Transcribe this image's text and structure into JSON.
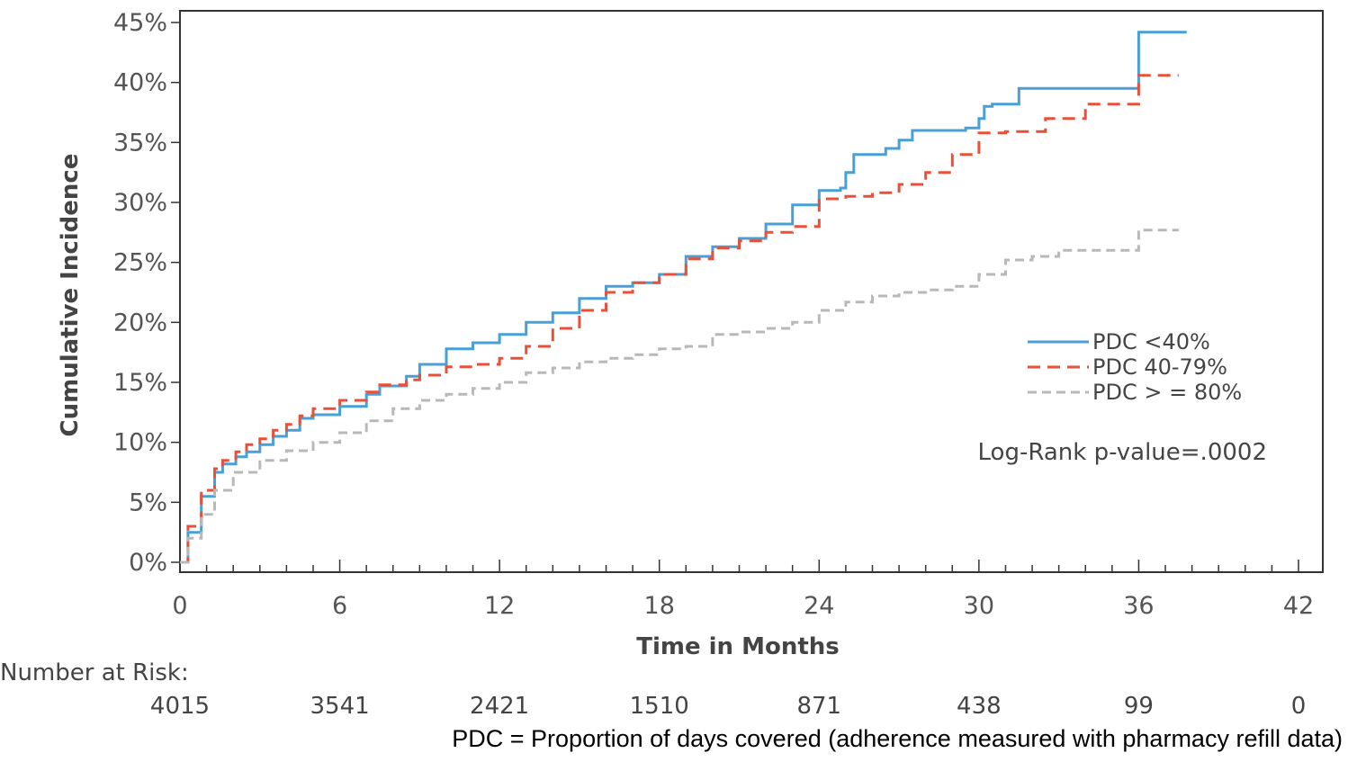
{
  "chart_data": {
    "type": "line",
    "title": "",
    "xlabel": "Time in Months",
    "ylabel": "Cumulative Incidence",
    "xlim": [
      0,
      42
    ],
    "ylim": [
      0,
      45
    ],
    "x_ticks": [
      0,
      6,
      12,
      18,
      24,
      30,
      36,
      42
    ],
    "x_tick_labels": [
      "0",
      "6",
      "12",
      "18",
      "24",
      "30",
      "36",
      "42"
    ],
    "y_ticks": [
      0,
      5,
      10,
      15,
      20,
      25,
      30,
      35,
      40,
      45
    ],
    "y_tick_labels": [
      "0%",
      "5%",
      "10%",
      "15%",
      "20%",
      "25%",
      "30%",
      "35%",
      "40%",
      "45%"
    ],
    "grid": false,
    "legend_position": "right",
    "series": [
      {
        "name": "PDC <40%",
        "color": "#4a9fd4",
        "style": "solid",
        "x": [
          0,
          0.3,
          0.8,
          1.3,
          1.6,
          2.1,
          2.5,
          3.0,
          3.5,
          4.0,
          4.5,
          5.0,
          6.0,
          7.0,
          7.5,
          8.5,
          9.0,
          10.0,
          11.0,
          12.0,
          13.0,
          14.0,
          15.0,
          16.0,
          17.0,
          18.0,
          19.0,
          20.0,
          21.0,
          22.0,
          23.0,
          24.0,
          24.8,
          25.0,
          25.3,
          26.5,
          27.0,
          27.5,
          29.5,
          30.0,
          30.2,
          30.5,
          31.5,
          35.9,
          36.0,
          37.8
        ],
        "y": [
          0,
          2.5,
          5.5,
          7.5,
          8.2,
          8.8,
          9.2,
          9.8,
          10.5,
          11.0,
          12.0,
          12.3,
          13.0,
          14.0,
          14.7,
          15.5,
          16.5,
          17.8,
          18.3,
          19.0,
          20.0,
          20.8,
          22.0,
          23.0,
          23.3,
          24.0,
          25.5,
          26.3,
          27.0,
          28.2,
          29.8,
          31.0,
          31.2,
          32.5,
          34.0,
          34.5,
          35.2,
          36.0,
          36.2,
          37.0,
          38.0,
          38.2,
          39.5,
          39.5,
          44.2,
          44.2
        ]
      },
      {
        "name": "PDC 40-79%",
        "color": "#e8503a",
        "style": "dashed",
        "x": [
          0,
          0.3,
          0.8,
          1.3,
          1.6,
          2.1,
          2.5,
          3.0,
          3.5,
          4.0,
          4.5,
          5.0,
          6.0,
          7.0,
          7.5,
          8.5,
          9.0,
          10.0,
          11.0,
          12.0,
          13.0,
          14.0,
          15.0,
          16.0,
          17.0,
          18.0,
          19.0,
          20.0,
          21.0,
          22.0,
          23.0,
          24.0,
          25.0,
          26.0,
          27.0,
          28.0,
          29.0,
          30.0,
          31.0,
          32.5,
          34.0,
          35.9,
          36.0,
          37.5
        ],
        "y": [
          0,
          3.0,
          6.0,
          7.8,
          8.5,
          9.2,
          9.8,
          10.3,
          11.0,
          11.5,
          12.2,
          12.8,
          13.5,
          14.2,
          14.8,
          15.2,
          15.6,
          16.3,
          16.5,
          17.0,
          18.0,
          19.5,
          21.0,
          22.5,
          23.3,
          24.0,
          25.3,
          26.2,
          26.8,
          27.5,
          28.0,
          30.3,
          30.5,
          30.8,
          31.5,
          32.5,
          34.0,
          35.8,
          35.9,
          37.0,
          38.2,
          38.2,
          40.6,
          40.6
        ]
      },
      {
        "name": "PDC > = 80%",
        "color": "#b8b8b8",
        "style": "dashed",
        "x": [
          0,
          0.3,
          0.8,
          1.3,
          2.0,
          3.0,
          4.0,
          5.0,
          6.0,
          7.0,
          8.0,
          9.0,
          10.0,
          11.0,
          12.0,
          13.0,
          14.0,
          15.0,
          16.0,
          17.0,
          18.0,
          19.0,
          20.0,
          21.0,
          22.0,
          23.0,
          24.0,
          25.0,
          26.0,
          27.0,
          28.0,
          29.0,
          30.0,
          31.0,
          32.0,
          33.0,
          34.0,
          35.0,
          35.9,
          36.0,
          37.5
        ],
        "y": [
          0,
          2.0,
          4.0,
          6.0,
          7.5,
          8.5,
          9.3,
          10.0,
          10.8,
          11.8,
          12.8,
          13.5,
          14.0,
          14.5,
          15.0,
          15.8,
          16.2,
          16.7,
          17.0,
          17.3,
          17.8,
          18.0,
          19.0,
          19.2,
          19.5,
          20.0,
          21.0,
          21.7,
          22.2,
          22.5,
          22.7,
          23.0,
          24.0,
          25.2,
          25.5,
          26.0,
          26.0,
          26.0,
          26.0,
          27.7,
          27.7
        ]
      }
    ],
    "annotations": [
      "Log-Rank p-value=.0002"
    ],
    "risk_table": {
      "label": "Number at Risk:",
      "values": [
        "4015",
        "3541",
        "2421",
        "1510",
        "871",
        "438",
        "99",
        "0"
      ]
    },
    "footnote": "PDC = Proportion of days covered (adherence measured with pharmacy refill data)"
  }
}
